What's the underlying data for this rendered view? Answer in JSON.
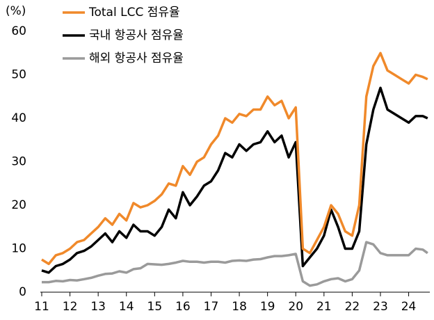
{
  "chart_data": {
    "type": "line",
    "y_label": "(%)",
    "x": [
      11,
      11.25,
      11.5,
      11.75,
      12,
      12.25,
      12.5,
      12.75,
      13,
      13.25,
      13.5,
      13.75,
      14,
      14.25,
      14.5,
      14.75,
      15,
      15.25,
      15.5,
      15.75,
      16,
      16.25,
      16.5,
      16.75,
      17,
      17.25,
      17.5,
      17.75,
      18,
      18.25,
      18.5,
      18.75,
      19,
      19.25,
      19.5,
      19.75,
      20,
      20.25,
      20.5,
      20.75,
      21,
      21.25,
      21.5,
      21.75,
      22,
      22.25,
      22.5,
      22.75,
      23,
      23.25,
      23.5,
      23.75,
      24,
      24.25,
      24.5,
      24.67
    ],
    "series": [
      {
        "name": "Total LCC 점유율",
        "color": "#f0892a",
        "values": [
          7.5,
          6.5,
          8.5,
          9,
          10,
          11.5,
          12,
          13.5,
          15,
          17,
          15.5,
          18,
          16.5,
          20.5,
          19.5,
          20,
          21,
          22.5,
          25,
          24.5,
          29,
          27,
          30,
          31,
          34,
          36,
          40,
          39,
          41,
          40.5,
          42,
          42,
          45,
          43,
          44,
          40,
          42.5,
          10,
          9,
          12,
          15,
          20,
          18,
          14,
          13,
          20,
          45,
          52,
          55,
          51,
          50,
          49,
          48,
          50,
          49.5,
          49
        ]
      },
      {
        "name": "국내 항공사 점유율",
        "color": "#000000",
        "values": [
          5,
          4.5,
          6,
          6.5,
          7.5,
          9,
          9.5,
          10.5,
          12,
          13.5,
          11.5,
          14,
          12.5,
          15.5,
          14,
          14,
          13,
          15,
          19,
          17,
          23,
          20,
          22,
          24.5,
          25.5,
          28,
          32,
          31,
          34,
          32.5,
          34,
          34.5,
          37,
          34.5,
          36,
          31,
          34.5,
          6,
          8,
          10,
          13,
          19,
          15,
          10,
          10,
          14,
          34,
          42,
          47,
          42,
          41,
          40,
          39,
          40.5,
          40.5,
          40
        ]
      },
      {
        "name": "해외 항공사 점유율",
        "color": "#9a9a9a",
        "values": [
          2.3,
          2.3,
          2.6,
          2.5,
          2.8,
          2.7,
          3,
          3.3,
          3.8,
          4.2,
          4.3,
          4.8,
          4.5,
          5.3,
          5.5,
          6.5,
          6.4,
          6.3,
          6.5,
          6.8,
          7.2,
          7,
          7,
          6.8,
          7,
          7,
          6.8,
          7.2,
          7.3,
          7.2,
          7.5,
          7.6,
          8,
          8.3,
          8.3,
          8.5,
          8.8,
          2.5,
          1.5,
          1.8,
          2.5,
          3,
          3.2,
          2.5,
          3,
          5,
          11.5,
          11,
          9,
          8.5,
          8.5,
          8.5,
          8.5,
          10,
          9.8,
          9
        ]
      }
    ],
    "xlim": [
      11,
      24.75
    ],
    "xticks": [
      11,
      12,
      13,
      14,
      15,
      16,
      17,
      18,
      19,
      20,
      21,
      22,
      23,
      24
    ],
    "ylim": [
      0,
      60
    ],
    "yticks": [
      0,
      10,
      20,
      30,
      40,
      50,
      60
    ],
    "grid": false,
    "legend": "upper left"
  }
}
